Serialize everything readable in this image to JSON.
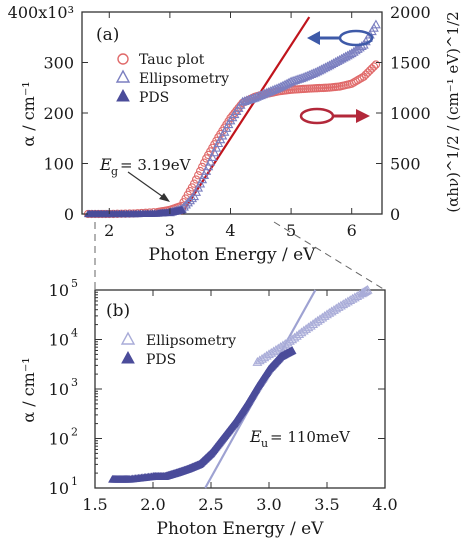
{
  "chart_data": [
    {
      "panel": "(a)",
      "type": "scatter",
      "xlabel": "Photon Energy / eV",
      "ylabel_left": "α / cm⁻¹",
      "ylabel_right": "(αhν)^1/2 / (cm⁻¹ eV)^1/2",
      "x_ticks": [
        "2",
        "3",
        "4",
        "5",
        "6"
      ],
      "y_left_ticks": [
        "0",
        "100",
        "200",
        "300",
        "400x10³"
      ],
      "y_right_ticks": [
        "0",
        "500",
        "1000",
        "1500",
        "2000"
      ],
      "xlim": [
        1.55,
        6.5
      ],
      "ylim_left": [
        0,
        400
      ],
      "ylim_right": [
        0,
        2000
      ],
      "legend": [
        "Tauc plot",
        "Ellipsometry",
        "PDS"
      ],
      "annotation": {
        "label": "E",
        "sub": "g",
        "value": "= 3.19eV",
        "x": 3.19
      },
      "series": [
        {
          "name": "Tauc plot",
          "axis": "right",
          "marker": "circle-open",
          "color": "#e06a6a",
          "x": [
            1.65,
            2.0,
            2.4,
            2.8,
            3.0,
            3.19,
            3.4,
            3.6,
            3.8,
            4.0,
            4.2,
            4.4,
            4.6,
            4.8,
            5.0,
            5.2,
            5.4,
            5.6,
            5.8,
            6.0,
            6.2,
            6.4
          ],
          "y": [
            0,
            0,
            5,
            20,
            40,
            80,
            300,
            550,
            760,
            950,
            1100,
            1160,
            1190,
            1215,
            1230,
            1238,
            1245,
            1250,
            1262,
            1290,
            1360,
            1480
          ]
        },
        {
          "name": "Ellipsometry",
          "axis": "left",
          "marker": "triangle-open",
          "color": "#7b7fc0",
          "x": [
            3.0,
            3.2,
            3.4,
            3.6,
            3.8,
            4.0,
            4.2,
            4.4,
            4.6,
            4.8,
            5.0,
            5.2,
            5.4,
            5.6,
            5.8,
            6.0,
            6.2,
            6.4
          ],
          "y": [
            3,
            10,
            35,
            85,
            140,
            185,
            222,
            230,
            240,
            250,
            262,
            270,
            280,
            292,
            305,
            318,
            335,
            375
          ]
        },
        {
          "name": "PDS",
          "axis": "left",
          "marker": "triangle-filled",
          "color": "#4b4c9a",
          "x": [
            1.65,
            2.0,
            2.4,
            2.8,
            3.0,
            3.2
          ],
          "y": [
            0,
            0,
            0,
            1,
            3,
            8
          ]
        }
      ],
      "fit_line": {
        "x": [
          3.19,
          5.3
        ],
        "y_right": [
          0,
          1950
        ],
        "color": "#c0141c"
      }
    },
    {
      "panel": "(b)",
      "type": "scatter",
      "yscale": "log",
      "xlabel": "Photon Energy / eV",
      "ylabel": "α / cm⁻¹",
      "x_ticks": [
        "1.5",
        "2.0",
        "2.5",
        "3.0",
        "3.5",
        "4.0"
      ],
      "y_ticks": [
        {
          "b": "10",
          "e": "1"
        },
        {
          "b": "10",
          "e": "2"
        },
        {
          "b": "10",
          "e": "3"
        },
        {
          "b": "10",
          "e": "4"
        },
        {
          "b": "10",
          "e": "5"
        }
      ],
      "xlim": [
        1.5,
        4.0
      ],
      "ylim": [
        10,
        100000
      ],
      "legend": [
        "Ellipsometry",
        "PDS"
      ],
      "annotation": {
        "label": "E",
        "sub": "u",
        "value": "= 110meV"
      },
      "series": [
        {
          "name": "Ellipsometry",
          "marker": "triangle-open",
          "color": "#a9acd8",
          "x": [
            2.9,
            3.0,
            3.1,
            3.2,
            3.3,
            3.4,
            3.5,
            3.6,
            3.7,
            3.8,
            3.85
          ],
          "y": [
            3500,
            5000,
            7000,
            10000,
            15000,
            22000,
            32000,
            45000,
            62000,
            85000,
            100000
          ]
        },
        {
          "name": "PDS",
          "marker": "triangle-filled",
          "color": "#4b4c9a",
          "x": [
            1.65,
            1.8,
            2.0,
            2.1,
            2.2,
            2.3,
            2.4,
            2.5,
            2.6,
            2.7,
            2.8,
            2.9,
            3.0,
            3.1,
            3.2
          ],
          "y": [
            15,
            15,
            17,
            17,
            20,
            24,
            30,
            50,
            100,
            200,
            450,
            1100,
            2500,
            4500,
            6000
          ]
        }
      ],
      "fit_line": {
        "x": [
          2.45,
          3.4
        ],
        "y": [
          10,
          100000
        ],
        "color": "#9ea2d2"
      }
    }
  ]
}
